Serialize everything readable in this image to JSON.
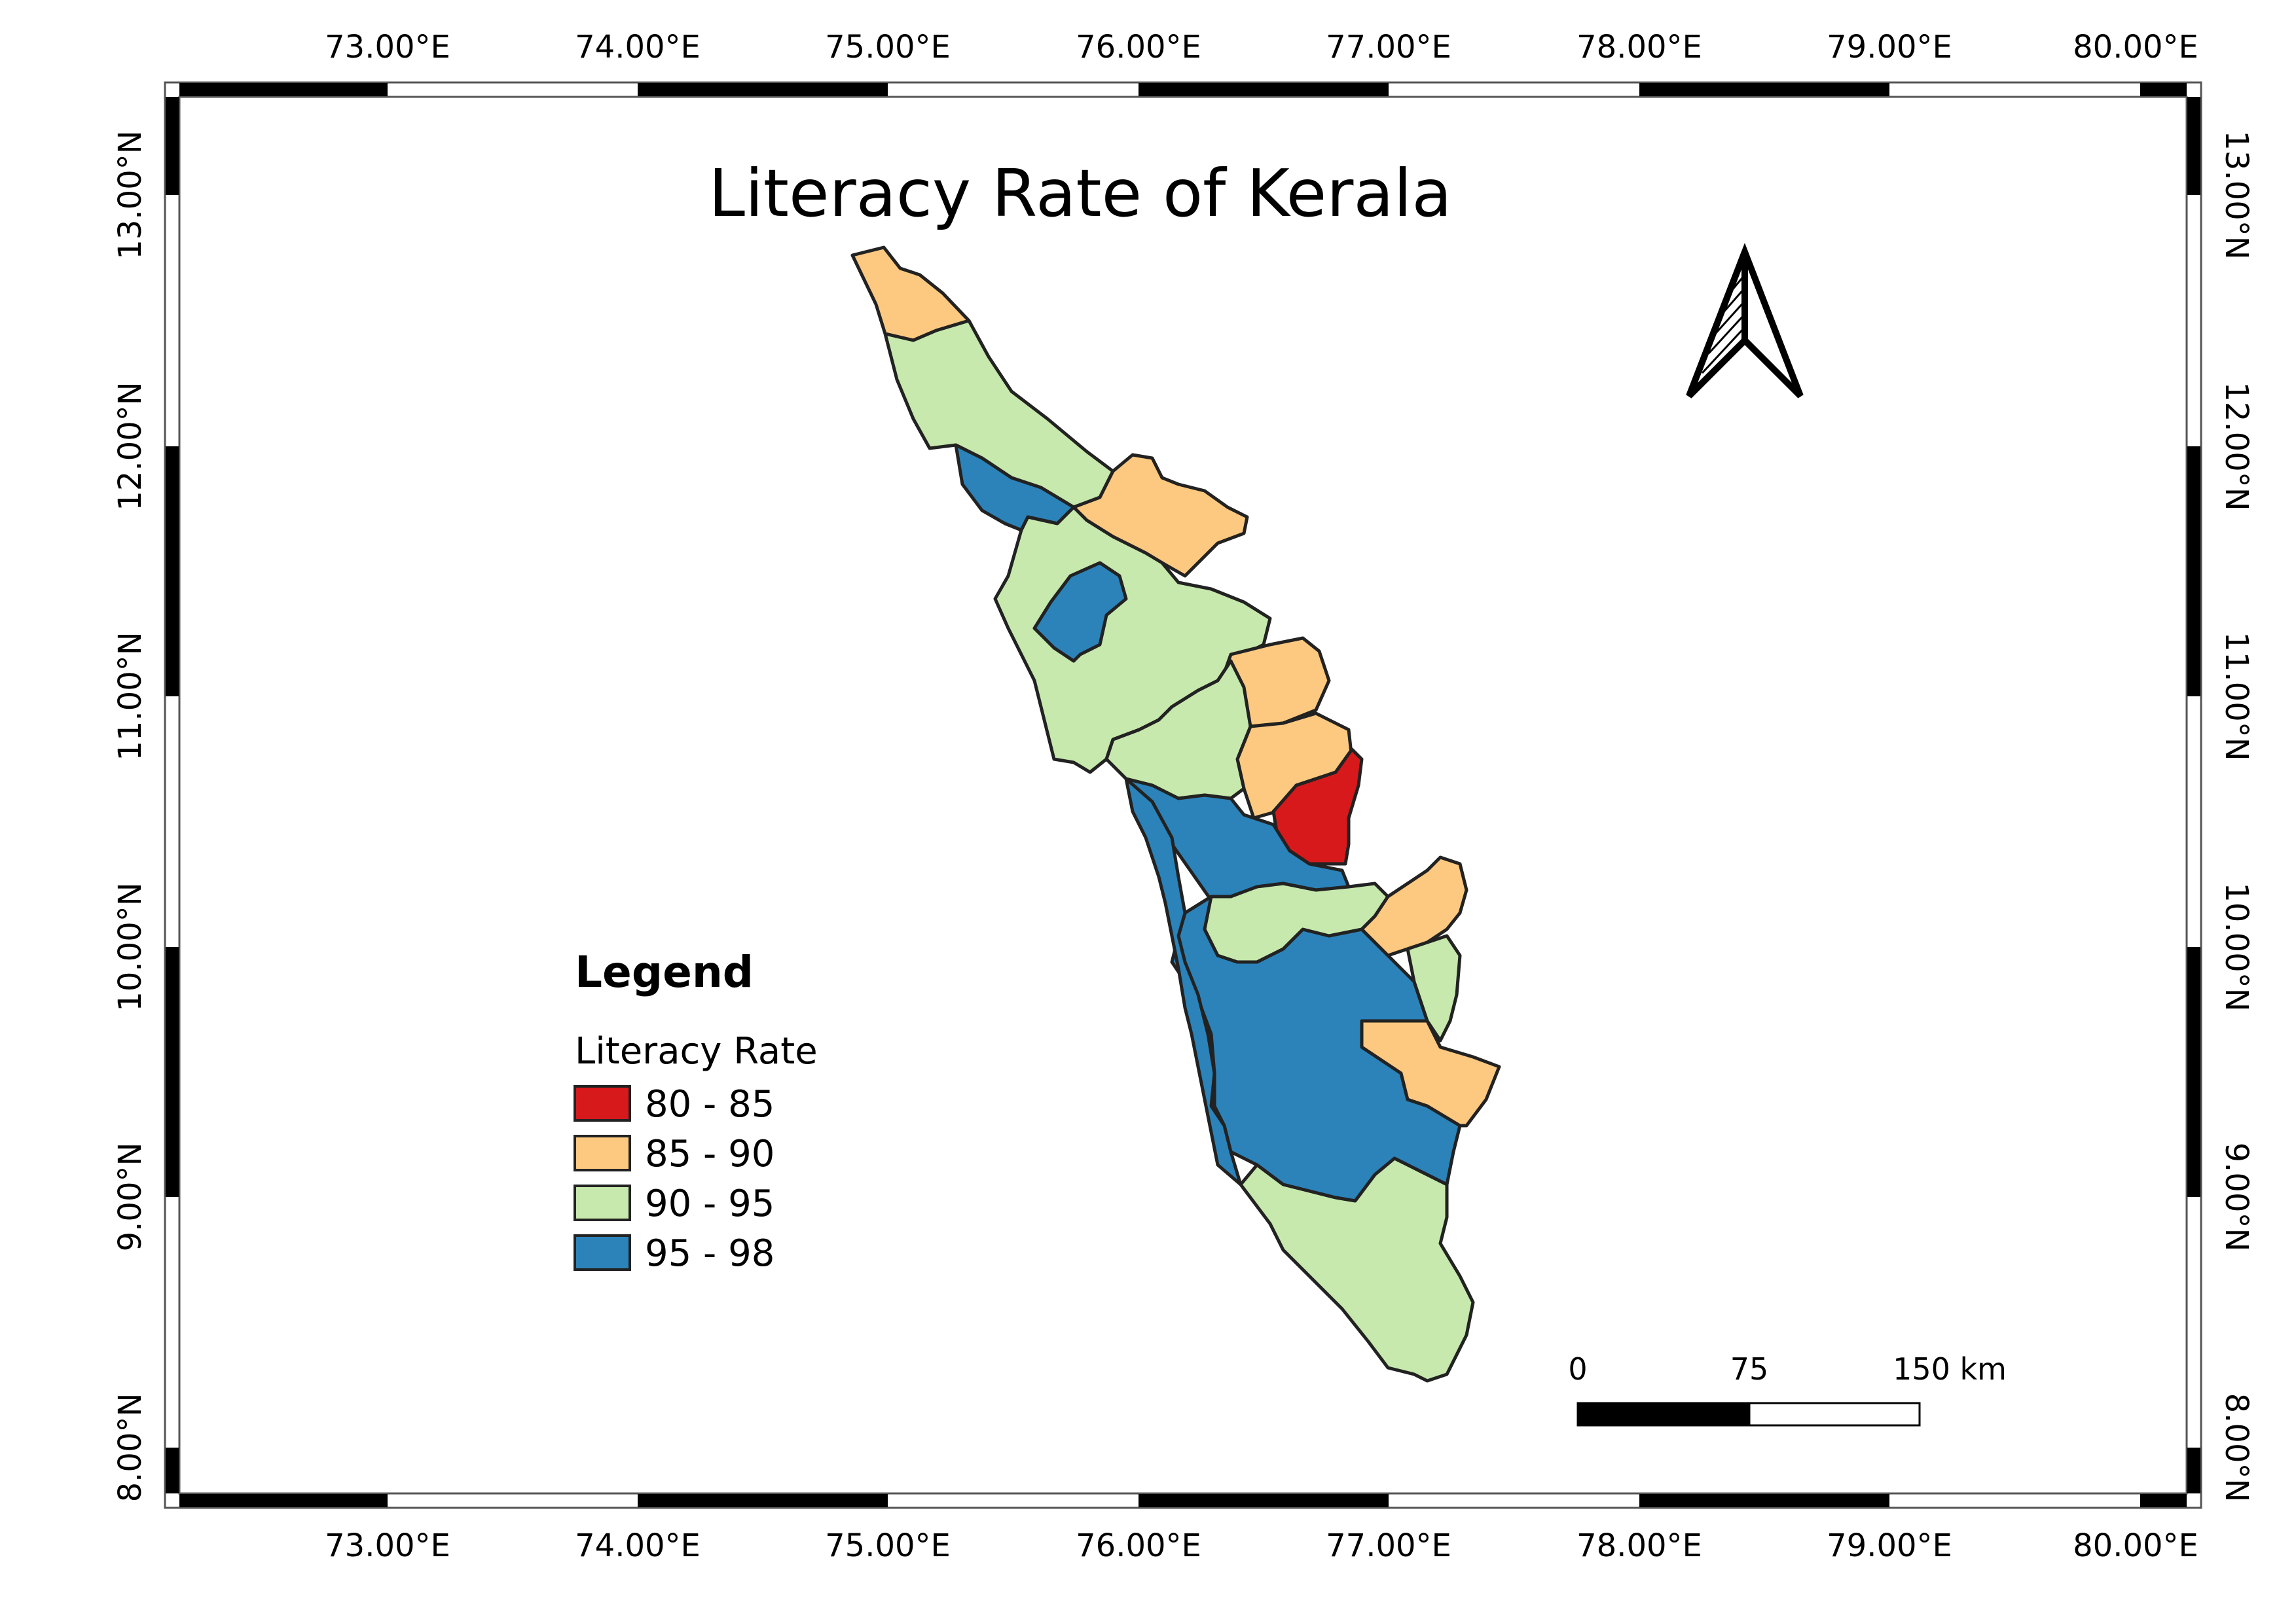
{
  "map": {
    "title": "Literacy Rate of Kerala",
    "longitude_labels": [
      "73.00°E",
      "74.00°E",
      "75.00°E",
      "76.00°E",
      "77.00°E",
      "78.00°E",
      "79.00°E",
      "80.00°E"
    ],
    "latitude_labels": [
      "13.00°N",
      "12.00°N",
      "11.00°N",
      "10.00°N",
      "9.00°N",
      "8.00°N"
    ]
  },
  "legend": {
    "heading": "Legend",
    "layer": "Literacy Rate",
    "classes": [
      {
        "label": "80 - 85",
        "color": "#d7191c"
      },
      {
        "label": "85 - 90",
        "color": "#fdc980"
      },
      {
        "label": "90 - 95",
        "color": "#c7e9ad"
      },
      {
        "label": "95 - 98",
        "color": "#2b83ba"
      }
    ]
  },
  "scale_bar": {
    "labels": [
      "0",
      "75",
      "150 km"
    ]
  },
  "north_arrow": {
    "icon": "north-arrow-icon"
  }
}
